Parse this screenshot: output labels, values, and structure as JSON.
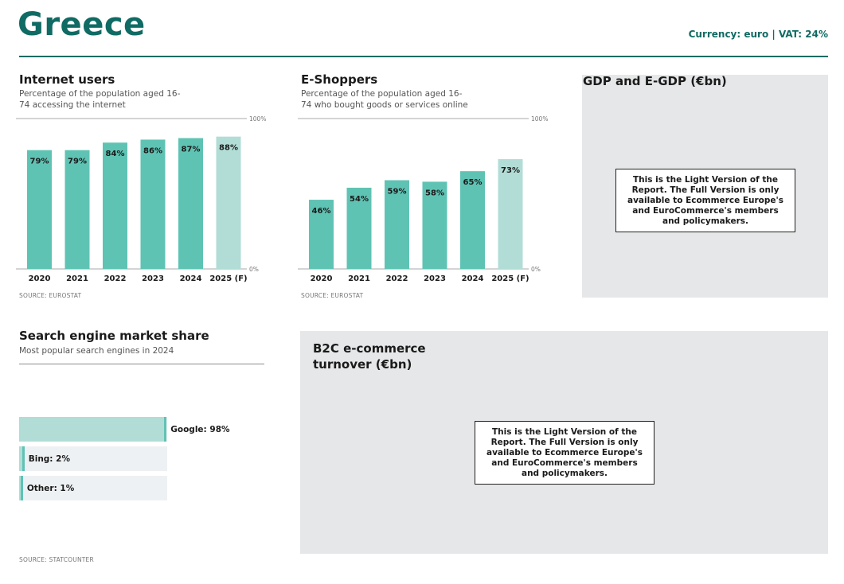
{
  "header": {
    "title": "Greece",
    "currency_vat": "Currency: euro | VAT: 24%"
  },
  "internet_users": {
    "title": "Internet users",
    "subtitle": "Percentage of the population aged 16-74 accessing the internet",
    "source": "SOURCE: EUROSTAT"
  },
  "e_shoppers": {
    "title": "E-Shoppers",
    "subtitle": "Percentage of the population aged 16-74 who bought goods or services online",
    "source": "SOURCE: EUROSTAT"
  },
  "gdp": {
    "title": "GDP and E-GDP (€bn)",
    "notice": "This is the Light Version of the Report. The Full Version is only available to Ecommerce Europe's and EuroCommerce's members and policymakers."
  },
  "search": {
    "title": "Search engine market share",
    "subtitle": "Most popular search engines in 2024",
    "source": "SOURCE: STATCOUNTER"
  },
  "b2c": {
    "title": "B2C e-commerce turnover (€bn)",
    "notice": "This is the Light Version of the Report. The Full Version is only available to Ecommerce Europe's and EuroCommerce's members and policymakers."
  },
  "colors": {
    "brand": "#0f6b63",
    "bar": "#5fc3b4",
    "bar_forecast": "#b2ddd7",
    "panel": "#e6e7e8"
  },
  "chart_data": [
    {
      "id": "internet_users",
      "type": "bar",
      "categories": [
        "2020",
        "2021",
        "2022",
        "2023",
        "2024",
        "2025 (F)"
      ],
      "values": [
        79,
        79,
        84,
        86,
        87,
        88
      ],
      "value_labels": [
        "79%",
        "79%",
        "84%",
        "86%",
        "87%",
        "88%"
      ],
      "forecast_index": 5,
      "ylim": [
        0,
        100
      ],
      "ytick_labels": [
        "0%",
        "100%"
      ]
    },
    {
      "id": "e_shoppers",
      "type": "bar",
      "categories": [
        "2020",
        "2021",
        "2022",
        "2023",
        "2024",
        "2025 (F)"
      ],
      "values": [
        46,
        54,
        59,
        58,
        65,
        73
      ],
      "value_labels": [
        "46%",
        "54%",
        "59%",
        "58%",
        "65%",
        "73%"
      ],
      "forecast_index": 5,
      "ylim": [
        0,
        100
      ],
      "ytick_labels": [
        "0%",
        "100%"
      ]
    },
    {
      "id": "search_engines",
      "type": "bar",
      "orientation": "horizontal",
      "categories": [
        "Google",
        "Bing",
        "Other"
      ],
      "values": [
        98,
        2,
        1
      ],
      "value_labels": [
        "Google: 98%",
        "Bing: 2%",
        "Other: 1%"
      ],
      "xlim": [
        0,
        100
      ]
    }
  ]
}
